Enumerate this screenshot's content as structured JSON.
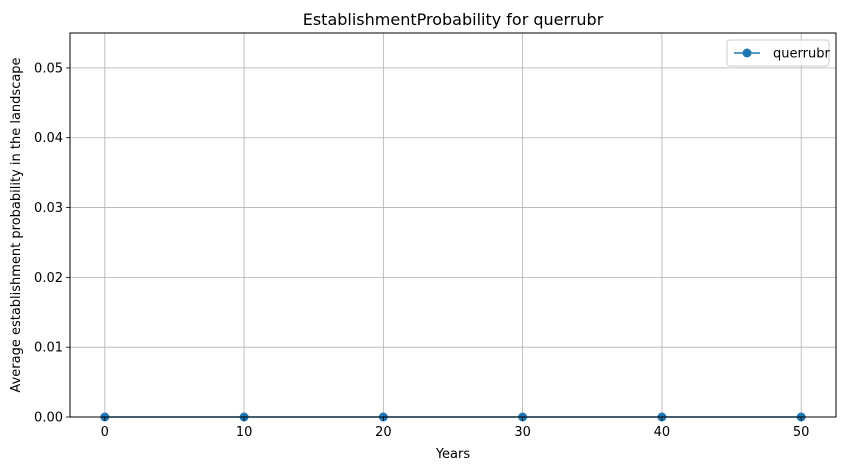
{
  "chart_data": {
    "type": "line",
    "title": "EstablishmentProbability for querrubr",
    "xlabel": "Years",
    "ylabel": "Average establishment probability in the landscape",
    "xlim": [
      -2.5,
      52.5
    ],
    "ylim": [
      0,
      0.055
    ],
    "xticks": [
      0,
      10,
      20,
      30,
      40,
      50
    ],
    "xtick_labels": [
      "0",
      "10",
      "20",
      "30",
      "40",
      "50"
    ],
    "yticks": [
      0,
      0.01,
      0.02,
      0.03,
      0.04,
      0.05
    ],
    "ytick_labels": [
      "0.00",
      "0.01",
      "0.02",
      "0.03",
      "0.04",
      "0.05"
    ],
    "grid": true,
    "legend_position": "top-right",
    "series": [
      {
        "name": "querrubr",
        "color": "#1f77b4",
        "marker": "circle",
        "x": [
          0,
          10,
          20,
          30,
          40,
          50
        ],
        "y": [
          0,
          0,
          0,
          0,
          0,
          0
        ]
      }
    ]
  }
}
